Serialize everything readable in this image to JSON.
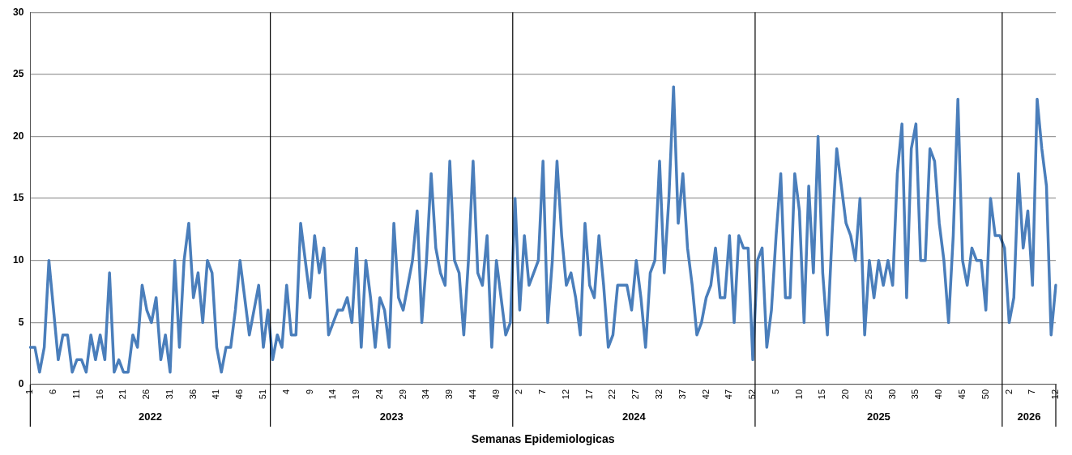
{
  "chart_data": {
    "type": "line",
    "xlabel": "Semanas Epidemiologicas",
    "categories": [
      "1",
      null,
      null,
      null,
      null,
      "6",
      null,
      null,
      null,
      null,
      "11",
      null,
      null,
      null,
      null,
      "16",
      null,
      null,
      null,
      null,
      "21",
      null,
      null,
      null,
      null,
      "26",
      null,
      null,
      null,
      null,
      "31",
      null,
      null,
      null,
      null,
      "36",
      null,
      null,
      null,
      null,
      "41",
      null,
      null,
      null,
      null,
      "46",
      null,
      null,
      null,
      null,
      "51",
      null,
      null,
      null,
      null,
      "4",
      null,
      null,
      null,
      null,
      "9",
      null,
      null,
      null,
      null,
      "14",
      null,
      null,
      null,
      null,
      "19",
      null,
      null,
      null,
      null,
      "24",
      null,
      null,
      null,
      null,
      "29",
      null,
      null,
      null,
      null,
      "34",
      null,
      null,
      null,
      null,
      "39",
      null,
      null,
      null,
      null,
      "44",
      null,
      null,
      null,
      null,
      "49",
      null,
      null,
      null,
      null,
      "2",
      null,
      null,
      null,
      null,
      "7",
      null,
      null,
      null,
      null,
      "12",
      null,
      null,
      null,
      null,
      "17",
      null,
      null,
      null,
      null,
      "22",
      null,
      null,
      null,
      null,
      "27",
      null,
      null,
      null,
      null,
      "32",
      null,
      null,
      null,
      null,
      "37",
      null,
      null,
      null,
      null,
      "42",
      null,
      null,
      null,
      null,
      "47",
      null,
      null,
      null,
      null,
      "52",
      null,
      null,
      null,
      null,
      "5",
      null,
      null,
      null,
      null,
      "10",
      null,
      null,
      null,
      null,
      "15",
      null,
      null,
      null,
      null,
      "20",
      null,
      null,
      null,
      null,
      "25",
      null,
      null,
      null,
      null,
      "30",
      null,
      null,
      null,
      null,
      "35",
      null,
      null,
      null,
      null,
      "40",
      null,
      null,
      null,
      null,
      "45",
      null,
      null,
      null,
      null,
      "50",
      null,
      null,
      null,
      null,
      "2",
      null,
      null,
      null,
      null,
      "7",
      null,
      null,
      null,
      null,
      "12"
    ],
    "annotations": [
      "2022",
      "2023",
      "2024",
      "2025",
      "2026"
    ],
    "series": [
      {
        "color": "#4a7ebb",
        "values": [
          3,
          3,
          1,
          3,
          10,
          6,
          2,
          4,
          4,
          1,
          2,
          2,
          1,
          4,
          2,
          4,
          2,
          9,
          1,
          2,
          1,
          1,
          4,
          3,
          8,
          6,
          5,
          7,
          2,
          4,
          1,
          10,
          3,
          10,
          13,
          7,
          9,
          5,
          10,
          9,
          3,
          1,
          3,
          3,
          6,
          10,
          7,
          4,
          6,
          8,
          3,
          6,
          2,
          4,
          3,
          8,
          4,
          4,
          13,
          10,
          7,
          12,
          9,
          11,
          4,
          5,
          6,
          6,
          7,
          5,
          11,
          3,
          10,
          7,
          3,
          7,
          6,
          3,
          13,
          7,
          6,
          8,
          10,
          14,
          5,
          10,
          17,
          11,
          9,
          8,
          18,
          10,
          9,
          4,
          10,
          18,
          9,
          8,
          12,
          3,
          10,
          7,
          4,
          5,
          15,
          6,
          12,
          8,
          9,
          10,
          18,
          5,
          10,
          18,
          12,
          8,
          9,
          7,
          4,
          13,
          8,
          7,
          12,
          8,
          3,
          4,
          8,
          8,
          8,
          6,
          10,
          7,
          3,
          9,
          10,
          18,
          9,
          15,
          24,
          13,
          17,
          11,
          8,
          4,
          5,
          7,
          8,
          11,
          7,
          7,
          12,
          5,
          12,
          11,
          11,
          2,
          10,
          11,
          3,
          6,
          12,
          17,
          7,
          7,
          17,
          14,
          5,
          16,
          9,
          20,
          9,
          4,
          12,
          19,
          16,
          13,
          12,
          10,
          15,
          4,
          10,
          7,
          10,
          8,
          10,
          8,
          17,
          21,
          7,
          19,
          21,
          10,
          10,
          19,
          18,
          13,
          10,
          5,
          12,
          23,
          10,
          8,
          11,
          10,
          10,
          6,
          15,
          12,
          12,
          11,
          5,
          7,
          17,
          11,
          14,
          8,
          23,
          19,
          16,
          4,
          8
        ]
      }
    ],
    "ylim": [
      0,
      30
    ],
    "yticks": [
      0,
      5,
      10,
      15,
      20,
      25,
      30
    ],
    "grid": "y"
  }
}
